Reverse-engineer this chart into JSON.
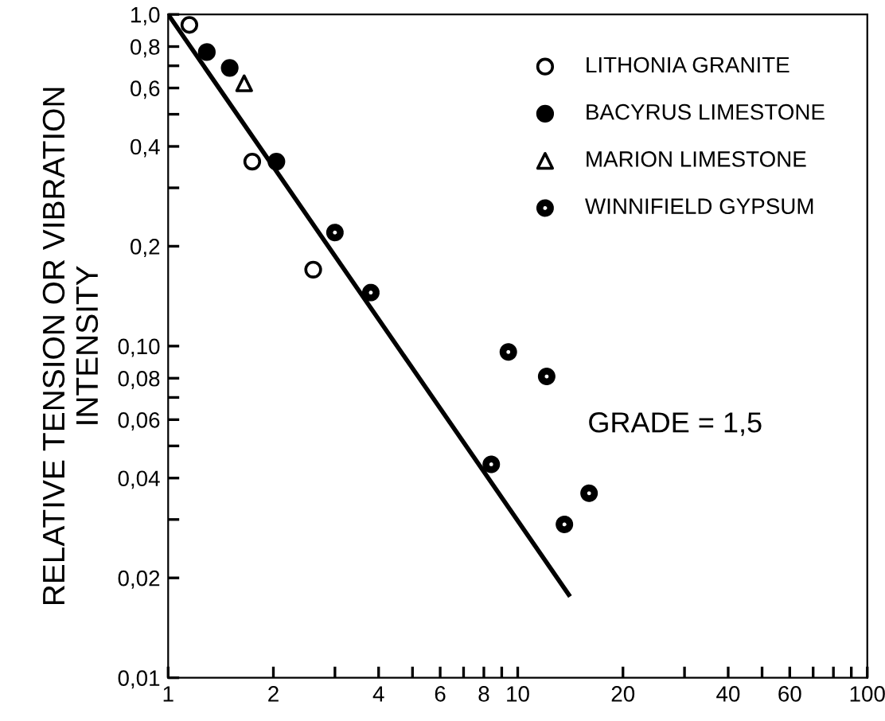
{
  "chart_data": {
    "type": "scatter",
    "ylabel": "RELATIVE TENSION OR VIBRATION\nINTENSITY",
    "log": "xy",
    "grid": false,
    "legend": "top right",
    "xlim": [
      1,
      100
    ],
    "ylim": [
      0.01,
      1.0
    ],
    "xticks": [
      1,
      2,
      {
        "value": 3,
        "label": null
      },
      4,
      {
        "value": 5,
        "label": null
      },
      6,
      {
        "value": 7,
        "label": null
      },
      8,
      {
        "value": 9,
        "label": null
      },
      {
        "value": 10,
        "label": "10"
      },
      20,
      {
        "value": 30,
        "label": null
      },
      40,
      {
        "value": 50,
        "label": null
      },
      60,
      {
        "value": 70,
        "label": null
      },
      {
        "value": 80,
        "label": null
      },
      {
        "value": 90,
        "label": null
      },
      100
    ],
    "yticks": [
      {
        "value": 0.01,
        "label": "0,01"
      },
      {
        "value": 0.02,
        "label": "0,02"
      },
      {
        "value": 0.03,
        "label": null
      },
      {
        "value": 0.04,
        "label": "0,04"
      },
      {
        "value": 0.05,
        "label": null
      },
      {
        "value": 0.06,
        "label": "0,06"
      },
      {
        "value": 0.07,
        "label": null
      },
      {
        "value": 0.08,
        "label": "0,08"
      },
      {
        "value": 0.1,
        "label": "0,10"
      },
      {
        "value": 0.2,
        "label": "0,2"
      },
      {
        "value": 0.3,
        "label": null
      },
      {
        "value": 0.4,
        "label": "0,4"
      },
      {
        "value": 0.5,
        "label": null
      },
      {
        "value": 0.6,
        "label": "0,6"
      },
      {
        "value": 0.7,
        "label": null
      },
      {
        "value": 0.8,
        "label": "0,8"
      },
      {
        "value": 1.0,
        "label": "1,0"
      }
    ],
    "annotations": [
      "GRADE = 1,5"
    ],
    "series": [
      {
        "name": "LITHONIA GRANITE",
        "color": "#000000",
        "marker": "circle",
        "x": [
          1.15,
          1.74,
          2.6
        ],
        "values": [
          0.93,
          0.36,
          0.17
        ]
      },
      {
        "name": "BACYRUS LIMESTONE",
        "color": "#000000",
        "marker": "circle",
        "x": [
          1.29,
          1.5,
          2.04
        ],
        "values": [
          0.77,
          0.69,
          0.36
        ]
      },
      {
        "name": "MARION LIMESTONE",
        "color": "#000000",
        "marker": "triangle",
        "x": [
          1.65
        ],
        "values": [
          0.62
        ]
      },
      {
        "name": "WINNIFIELD GYPSUM",
        "color": "#000000",
        "marker": "circle",
        "x": [
          3.0,
          3.8,
          8.4,
          9.4,
          12.1,
          13.6,
          16.0
        ],
        "values": [
          0.22,
          0.145,
          0.044,
          0.096,
          0.081,
          0.029,
          0.036
        ]
      },
      {
        "type": "line",
        "color": "#000000",
        "line_style": "solid",
        "x": [
          1,
          14
        ],
        "values": [
          1.0,
          0.0178
        ]
      }
    ]
  }
}
